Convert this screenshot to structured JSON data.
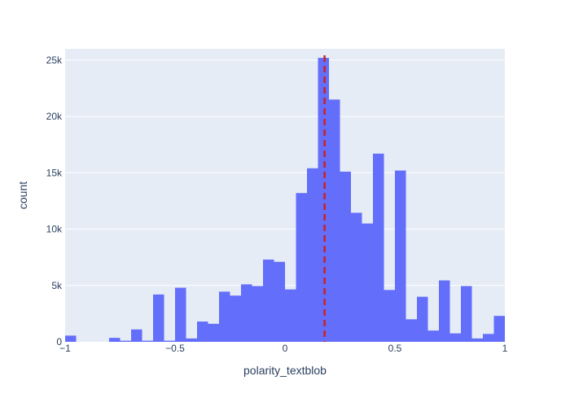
{
  "chart_data": {
    "type": "bar",
    "subtype": "histogram",
    "xlabel": "polarity_textblob",
    "ylabel": "count",
    "xlim": [
      -1,
      1
    ],
    "ylim": [
      0,
      26000
    ],
    "bin_width": 0.05,
    "bin_starts": [
      -1.0,
      -0.95,
      -0.9,
      -0.85,
      -0.8,
      -0.75,
      -0.7,
      -0.65,
      -0.6,
      -0.55,
      -0.5,
      -0.45,
      -0.4,
      -0.35,
      -0.3,
      -0.25,
      -0.2,
      -0.15,
      -0.1,
      -0.05,
      0.0,
      0.05,
      0.1,
      0.15,
      0.2,
      0.25,
      0.3,
      0.35,
      0.4,
      0.45,
      0.5,
      0.55,
      0.6,
      0.65,
      0.7,
      0.75,
      0.8,
      0.85,
      0.9,
      0.95
    ],
    "counts": [
      550,
      0,
      0,
      0,
      350,
      100,
      1100,
      100,
      4200,
      100,
      4800,
      300,
      1800,
      1600,
      4450,
      4100,
      5100,
      4950,
      7300,
      7100,
      4650,
      13200,
      15400,
      25200,
      21500,
      15100,
      11450,
      10500,
      16700,
      4600,
      15200,
      2000,
      4000,
      1000,
      5450,
      750,
      4950,
      300,
      700,
      2300
    ],
    "x_ticks": [
      {
        "value": -1,
        "label": "−1"
      },
      {
        "value": -0.5,
        "label": "−0.5"
      },
      {
        "value": 0,
        "label": "0"
      },
      {
        "value": 0.5,
        "label": "0.5"
      },
      {
        "value": 1,
        "label": "1"
      }
    ],
    "y_ticks": [
      {
        "value": 0,
        "label": "0"
      },
      {
        "value": 5000,
        "label": "5k"
      },
      {
        "value": 10000,
        "label": "10k"
      },
      {
        "value": 15000,
        "label": "15k"
      },
      {
        "value": 20000,
        "label": "20k"
      },
      {
        "value": 25000,
        "label": "25k"
      }
    ],
    "reference_line": {
      "x": 0.18,
      "style": "dashed",
      "color": "#cc2020"
    },
    "grid": true,
    "colors": {
      "bar": "#636efa",
      "plot_bg": "#e5ecf6",
      "grid": "#ffffff",
      "text": "#2a3f5f"
    }
  }
}
